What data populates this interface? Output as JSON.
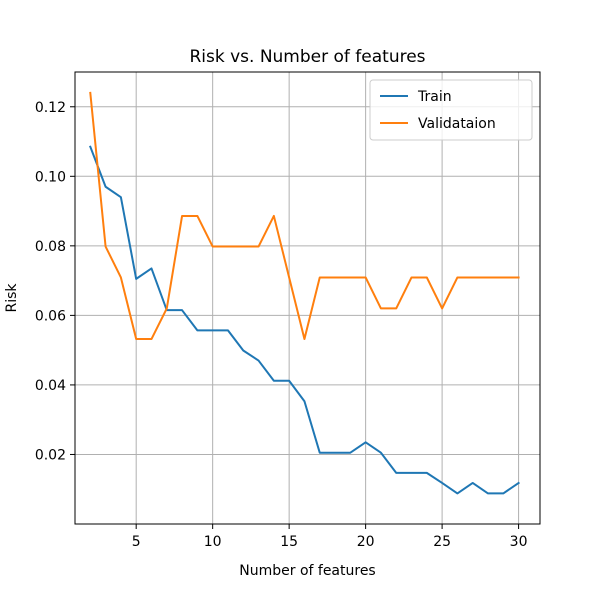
{
  "chart_data": {
    "type": "line",
    "title": "Risk vs. Number of features",
    "xlabel": "Number of features",
    "ylabel": "Risk",
    "xlim": [
      1.0,
      31.4
    ],
    "ylim": [
      0.0,
      0.13
    ],
    "x_ticks": [
      5,
      10,
      15,
      20,
      25,
      30
    ],
    "x_tick_labels": [
      "5",
      "10",
      "15",
      "20",
      "25",
      "30"
    ],
    "y_ticks": [
      0.02,
      0.04,
      0.06,
      0.08,
      0.1,
      0.12
    ],
    "y_tick_labels": [
      "0.02",
      "0.04",
      "0.06",
      "0.08",
      "0.10",
      "0.12"
    ],
    "grid": true,
    "legend_position": "top-right",
    "x": [
      2,
      3,
      4,
      5,
      6,
      7,
      8,
      9,
      10,
      11,
      12,
      13,
      14,
      15,
      16,
      17,
      18,
      19,
      20,
      21,
      22,
      23,
      24,
      25,
      26,
      27,
      28,
      29,
      30
    ],
    "series": [
      {
        "name": "Train",
        "color": "#1f77b4",
        "values": [
          0.1085,
          0.097,
          0.094,
          0.0705,
          0.0735,
          0.0615,
          0.0615,
          0.0557,
          0.0557,
          0.0557,
          0.0499,
          0.047,
          0.0412,
          0.0412,
          0.0353,
          0.0205,
          0.0205,
          0.0205,
          0.0235,
          0.0205,
          0.0147,
          0.0147,
          0.0147,
          0.0118,
          0.0088,
          0.0118,
          0.0088,
          0.0088,
          0.0118
        ]
      },
      {
        "name": "Validataion",
        "color": "#ff7f0e",
        "values": [
          0.124,
          0.0798,
          0.0709,
          0.0532,
          0.0532,
          0.062,
          0.0886,
          0.0886,
          0.0798,
          0.0798,
          0.0798,
          0.0798,
          0.0886,
          0.0709,
          0.0532,
          0.0709,
          0.0709,
          0.0709,
          0.0709,
          0.062,
          0.062,
          0.0709,
          0.0709,
          0.062,
          0.0709,
          0.0709,
          0.0709,
          0.0709,
          0.0709
        ]
      }
    ]
  }
}
